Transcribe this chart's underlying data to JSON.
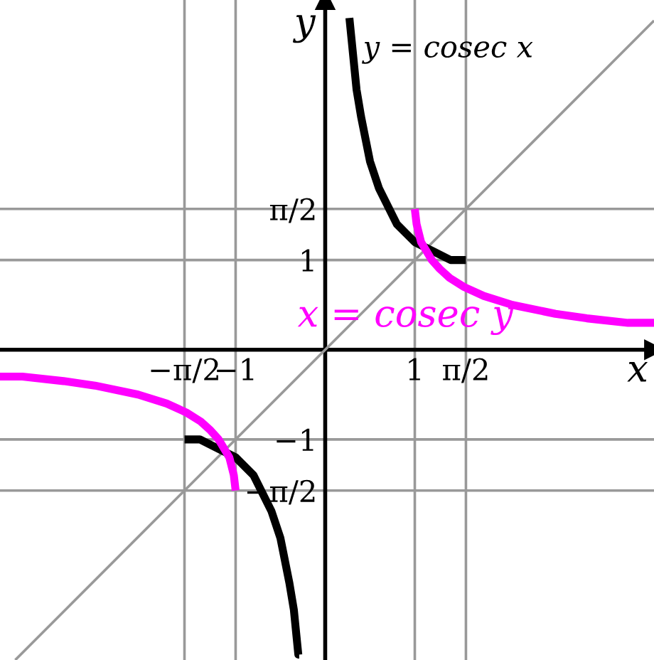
{
  "chart_data": {
    "type": "line",
    "xlabel": "x",
    "ylabel": "y",
    "xlim": [
      -3.63,
      3.67
    ],
    "ylim": [
      -3.46,
      3.9
    ],
    "xticks": [
      {
        "value": -1.5708,
        "label": "−π/2"
      },
      {
        "value": -1,
        "label": "−1"
      },
      {
        "value": 1,
        "label": "1"
      },
      {
        "value": 1.5708,
        "label": "π/2"
      }
    ],
    "yticks": [
      {
        "value": -1.5708,
        "label": "−π/2"
      },
      {
        "value": -1,
        "label": "−1"
      },
      {
        "value": 1,
        "label": "1"
      },
      {
        "value": 1.5708,
        "label": "π/2"
      }
    ],
    "grid": true,
    "legend": false,
    "marker": "none",
    "line_style": "solid",
    "series": [
      {
        "color": "#999999",
        "x": [
          -3.46,
          3.67
        ],
        "values": [
          -3.46,
          3.67
        ]
      },
      {
        "name": "y = cosec x",
        "color": "#000000",
        "x": [
          -1.57,
          -1.4,
          -1.2,
          -1.0,
          -0.8,
          -0.6,
          -0.5,
          -0.4,
          -0.35,
          -0.3,
          -0.29,
          null,
          0.27,
          0.3,
          0.35,
          0.4,
          0.5,
          0.6,
          0.7,
          0.8,
          0.9,
          1.0,
          1.2,
          1.4,
          1.57
        ],
        "values": [
          -1.0,
          -1.0,
          -1.1,
          -1.2,
          -1.4,
          -1.8,
          -2.1,
          -2.6,
          -2.9,
          -3.4,
          -3.4,
          null,
          3.7,
          3.4,
          2.9,
          2.6,
          2.1,
          1.8,
          1.6,
          1.4,
          1.3,
          1.2,
          1.1,
          1.0,
          1.0
        ]
      },
      {
        "name": "x = cosec y",
        "color": "#ff00ff",
        "x": [
          -3.63,
          -3.38,
          -2.92,
          -2.57,
          -2.09,
          -1.77,
          -1.55,
          -1.39,
          -1.28,
          -1.19,
          -1.07,
          -1.02,
          -1.0,
          null,
          1.0,
          1.02,
          1.07,
          1.19,
          1.28,
          1.39,
          1.55,
          1.77,
          2.09,
          2.57,
          2.92,
          3.38,
          3.67
        ],
        "values": [
          -0.3,
          -0.3,
          -0.35,
          -0.4,
          -0.5,
          -0.6,
          -0.7,
          -0.8,
          -0.9,
          -1.0,
          -1.2,
          -1.4,
          -1.57,
          null,
          1.57,
          1.4,
          1.2,
          1.0,
          0.9,
          0.8,
          0.7,
          0.6,
          0.5,
          0.4,
          0.35,
          0.3,
          0.3
        ]
      }
    ]
  }
}
